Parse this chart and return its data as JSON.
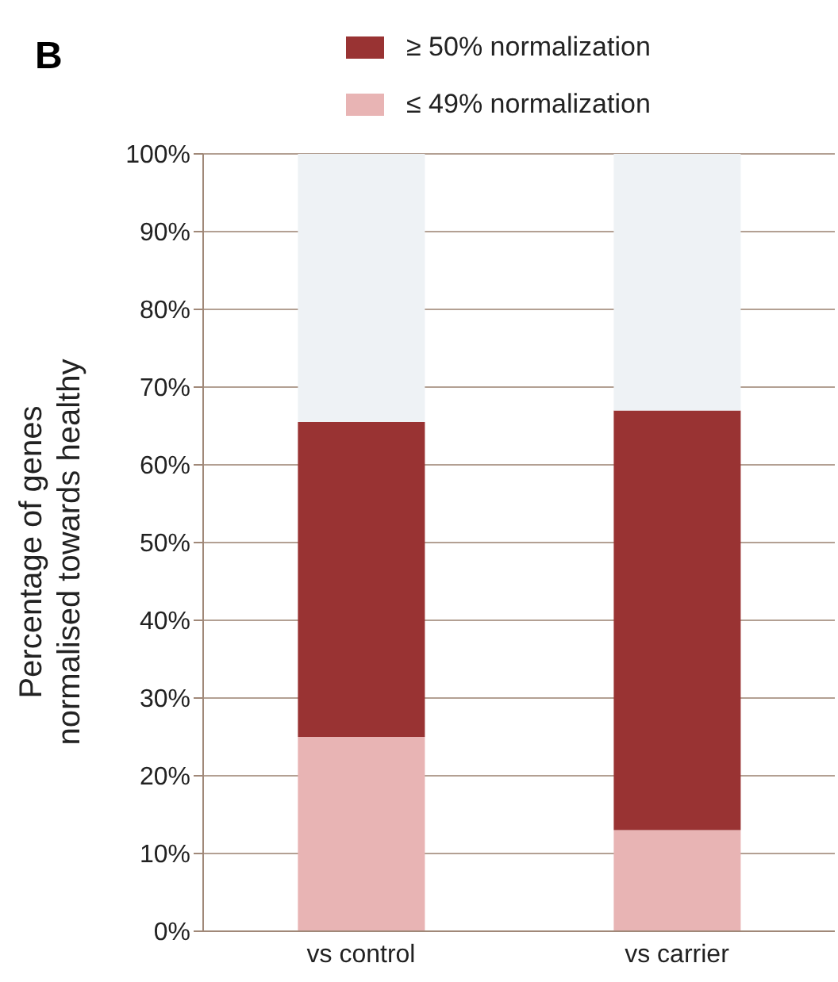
{
  "chart_data": {
    "type": "bar",
    "title": "B",
    "ylabel": "Percentage of genes\nnormalised towards healthy",
    "categories": [
      "vs control",
      "vs carrier"
    ],
    "stacked": true,
    "series": [
      {
        "name": "≤ 49% normalization",
        "color": "#e8b4b4",
        "values": [
          25,
          13
        ]
      },
      {
        "name": "≥ 50% normalization",
        "color": "#993333",
        "values": [
          40.5,
          54
        ]
      },
      {
        "color": "#eef2f5",
        "values": [
          34.5,
          33
        ]
      }
    ],
    "ylim": [
      0,
      100
    ],
    "yticks": [
      {
        "value": 0,
        "label": "0%"
      },
      {
        "value": 10,
        "label": "10%"
      },
      {
        "value": 20,
        "label": "20%"
      },
      {
        "value": 30,
        "label": "30%"
      },
      {
        "value": 40,
        "label": "40%"
      },
      {
        "value": 50,
        "label": "50%"
      },
      {
        "value": 60,
        "label": "60%"
      },
      {
        "value": 70,
        "label": "70%"
      },
      {
        "value": 80,
        "label": "80%"
      },
      {
        "value": 90,
        "label": "90%"
      },
      {
        "value": 100,
        "label": "100%"
      }
    ],
    "grid": "y",
    "legend": "top"
  }
}
